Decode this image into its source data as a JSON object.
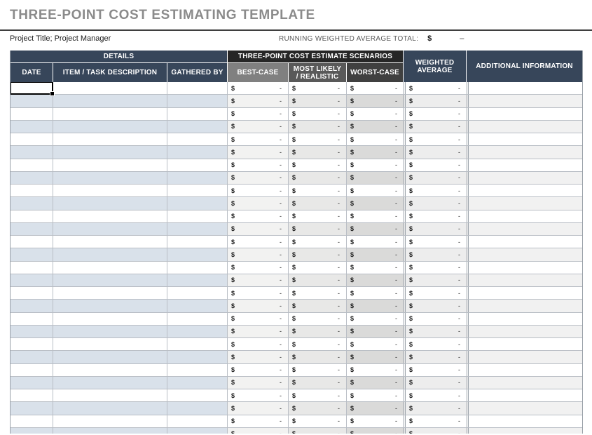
{
  "page": {
    "title": "THREE-POINT COST ESTIMATING TEMPLATE",
    "project_line": "Project Title; Project Manager",
    "running_total": {
      "label": "RUNNING WEIGHTED AVERAGE TOTAL:",
      "currency": "$",
      "value": "–"
    }
  },
  "table": {
    "groups": {
      "details": "DETAILS",
      "scenarios": "THREE-POINT COST ESTIMATE SCENARIOS",
      "weighted_average": "WEIGHTED AVERAGE",
      "additional_information": "ADDITIONAL INFORMATION"
    },
    "columns": {
      "date": "DATE",
      "item": "ITEM / TASK DESCRIPTION",
      "gathered_by": "GATHERED BY",
      "best_case": "BEST-CASE",
      "most_likely": "MOST LIKELY / REALISTIC",
      "worst_case": "WORST-CASE"
    },
    "rows": {
      "count": 28,
      "currency": "$",
      "value": "-",
      "date": "",
      "item": "",
      "gathered_by": "",
      "additional_information": ""
    },
    "selection": {
      "row_index": 0,
      "column": "date"
    }
  },
  "colors": {
    "title_gray": "#8b8b8b",
    "divider_dark": "#3f3f3f",
    "header_slate": "#37465a",
    "scenarios_dark": "#262626",
    "best_gray": "#808080",
    "most_gray": "#595959",
    "worst_gray": "#404040",
    "band_blue": "#d9e1ea",
    "band_best": "#f2f2f1",
    "band_most": "#e8e8e7",
    "band_worst": "#dadad9",
    "band_weighted": "#ededed",
    "band_neutral": "#f1f1f1",
    "grid_line": "#b9bec5",
    "outer_line": "#9aa1a9",
    "selection_black": "#000000"
  }
}
